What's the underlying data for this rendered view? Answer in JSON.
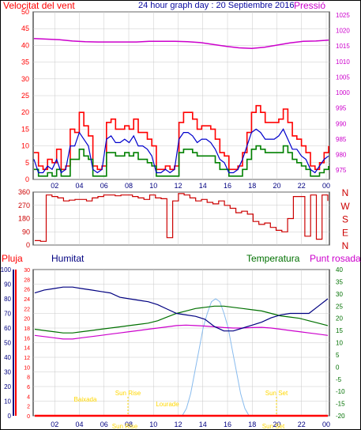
{
  "header": {
    "wind_label": "Velocitat del vent",
    "title": "24 hour graph day : 20 Septiembre 2016",
    "pressure_label": "Pressió"
  },
  "section_labels": {
    "rain": "Pluja",
    "humidity": "Humitat",
    "temperature": "Temperatura",
    "dewpoint": "Punt rosada"
  },
  "colors": {
    "wind": "#ff0000",
    "wind_avg": "#0000cc",
    "wind_green": "#008000",
    "pressure": "#cc00cc",
    "direction": "#cc0000",
    "humidity": "#000080",
    "temperature": "#007000",
    "dewpoint": "#cc00cc",
    "solar": "#88bbee",
    "annotation": "#ffd700"
  },
  "chart_data": [
    {
      "type": "line",
      "name": "wind_and_pressure",
      "x_tick_labels": [
        "02",
        "04",
        "06",
        "08",
        "10",
        "12",
        "14",
        "16",
        "18",
        "20",
        "22",
        "00"
      ],
      "left_axis": {
        "ticks": [
          0,
          5,
          10,
          15,
          20,
          25,
          30,
          35,
          40,
          45,
          50
        ],
        "range": [
          0,
          50
        ]
      },
      "right_axis": {
        "ticks": [
          975,
          980,
          985,
          990,
          995,
          1000,
          1005,
          1010,
          1015,
          1020,
          1025
        ],
        "range": [
          972,
          1026
        ]
      },
      "series": [
        {
          "name": "Velocitat del vent",
          "key": "gust",
          "values": [
            8,
            4,
            3,
            6,
            5,
            9,
            3,
            4,
            15,
            14,
            20,
            16,
            13,
            4,
            3,
            4,
            17,
            18,
            15,
            15,
            16,
            15,
            18,
            14,
            14,
            12,
            10,
            3,
            3,
            4,
            3,
            4,
            17,
            20,
            20,
            18,
            15,
            16,
            16,
            15,
            12,
            8,
            7,
            3,
            3,
            4,
            8,
            14,
            20,
            22,
            20,
            17,
            17,
            17,
            18,
            21,
            17,
            13,
            12,
            10,
            8,
            4,
            3,
            5,
            8,
            10
          ]
        },
        {
          "name": "wind_avg",
          "key": "avg",
          "values": [
            6,
            2,
            2,
            4,
            3,
            6,
            2,
            3,
            10,
            10,
            14,
            12,
            10,
            3,
            2,
            3,
            12,
            13,
            11,
            11,
            12,
            11,
            13,
            10,
            10,
            9,
            7,
            2,
            2,
            3,
            2,
            3,
            12,
            14,
            14,
            13,
            11,
            12,
            12,
            11,
            9,
            6,
            5,
            2,
            2,
            3,
            6,
            10,
            14,
            15,
            14,
            12,
            12,
            12,
            13,
            15,
            12,
            9,
            9,
            7,
            6,
            3,
            2,
            4,
            6,
            7
          ]
        },
        {
          "name": "wind_min",
          "key": "low",
          "values": [
            3,
            1,
            1,
            2,
            1,
            3,
            1,
            1,
            6,
            6,
            9,
            7,
            6,
            1,
            1,
            1,
            8,
            8,
            7,
            7,
            8,
            7,
            8,
            6,
            6,
            5,
            4,
            1,
            1,
            1,
            1,
            1,
            8,
            9,
            9,
            8,
            7,
            7,
            7,
            7,
            5,
            3,
            3,
            1,
            1,
            1,
            3,
            6,
            9,
            10,
            9,
            8,
            8,
            8,
            8,
            10,
            8,
            6,
            5,
            4,
            3,
            1,
            1,
            2,
            3,
            4
          ]
        },
        {
          "name": "Pressió",
          "key": "pressure",
          "values": [
            1017.4,
            1017.2,
            1017.0,
            1016.6,
            1016.4,
            1016.3,
            1016.3,
            1016.3,
            1016.3,
            1016.5,
            1016.5,
            1016.5,
            1016.4,
            1016.1,
            1015.5,
            1014.9,
            1014.4,
            1014.2,
            1014.6,
            1015.3,
            1016.0,
            1016.5,
            1016.6,
            1016.9
          ]
        }
      ]
    },
    {
      "type": "line",
      "name": "wind_direction",
      "left_axis": {
        "ticks": [
          360,
          270,
          180,
          90,
          0
        ],
        "range": [
          0,
          360
        ]
      },
      "right_labels": [
        "N",
        "W",
        "S",
        "E",
        "N"
      ],
      "series": [
        {
          "name": "Direcció",
          "key": "dir",
          "values": [
            30,
            25,
            340,
            330,
            320,
            300,
            305,
            310,
            310,
            300,
            320,
            330,
            340,
            340,
            335,
            340,
            340,
            330,
            320,
            310,
            340,
            320,
            315,
            50,
            300,
            350,
            340,
            320,
            300,
            310,
            290,
            280,
            300,
            270,
            250,
            220,
            230,
            210,
            160,
            140,
            150,
            120,
            100,
            90,
            180,
            330,
            330,
            60,
            340,
            40,
            340,
            300
          ]
        }
      ]
    },
    {
      "type": "line",
      "name": "humidity_temperature",
      "x_tick_labels": [
        "02",
        "04",
        "06",
        "08",
        "10",
        "12",
        "14",
        "16",
        "18",
        "20",
        "22",
        "00"
      ],
      "left_axis_humidity": {
        "ticks": [
          0,
          10,
          20,
          30,
          40,
          50,
          60,
          70,
          80,
          90,
          100
        ],
        "range": [
          0,
          100
        ]
      },
      "left_axis_rain": {
        "ticks": [
          0,
          2,
          4,
          6,
          8,
          10,
          12,
          14,
          16,
          18,
          20,
          22,
          24,
          26,
          28,
          30
        ],
        "range": [
          0,
          30
        ]
      },
      "right_axis": {
        "ticks": [
          -20,
          -15,
          -10,
          -5,
          0,
          5,
          10,
          15,
          20,
          25,
          30,
          35,
          40
        ],
        "range": [
          -20,
          40
        ]
      },
      "series": [
        {
          "name": "Humitat",
          "key": "hum",
          "values": [
            84,
            86,
            87,
            88,
            88,
            87,
            86,
            85,
            84,
            81,
            80,
            79,
            78,
            76,
            73,
            70,
            69,
            68,
            66,
            61,
            58,
            58,
            60,
            62,
            64,
            67,
            69,
            70,
            70,
            70,
            75,
            80
          ]
        },
        {
          "name": "Temperatura",
          "key": "temp",
          "values": [
            15.5,
            15.0,
            14.5,
            14.0,
            14.0,
            14.5,
            15.0,
            15.5,
            16.0,
            16.5,
            17.0,
            17.5,
            18.0,
            19.0,
            20.5,
            22.0,
            23.0,
            24.0,
            24.5,
            25.0,
            25.0,
            24.5,
            24.0,
            23.5,
            23.0,
            22.0,
            21.0,
            20.5,
            20.0,
            19.0,
            18.0,
            17.0
          ]
        },
        {
          "name": "Punt rosada",
          "key": "dew",
          "values": [
            13.0,
            12.5,
            12.0,
            11.5,
            11.5,
            12.0,
            12.5,
            13.0,
            13.5,
            14.0,
            14.5,
            15.0,
            15.5,
            16.0,
            16.5,
            17.0,
            17.2,
            17.0,
            16.8,
            16.5,
            16.2,
            16.0,
            16.0,
            16.2,
            16.3,
            16.0,
            15.5,
            15.0,
            14.5,
            14.0,
            13.5,
            13.0
          ]
        },
        {
          "name": "solar",
          "key": "solar",
          "values": [
            0,
            0,
            0,
            0,
            0,
            0,
            0,
            0,
            0,
            0,
            0,
            0,
            0,
            0,
            5,
            15,
            30,
            45,
            60,
            70,
            78,
            80,
            78,
            70,
            60,
            45,
            30,
            15,
            5,
            0,
            0,
            0,
            0,
            0,
            0,
            0
          ]
        },
        {
          "name": "Pluja",
          "key": "rain",
          "values": [
            0,
            0,
            0,
            0,
            0,
            0,
            0,
            0,
            0,
            0,
            0,
            0,
            0,
            0,
            0,
            0,
            0,
            0,
            0,
            0,
            0,
            0,
            0,
            0
          ]
        }
      ],
      "annotations": [
        "Baixada",
        "Sun Rise",
        "Lourade",
        "Sun Set",
        "Sun Rise",
        "Sun Set"
      ]
    }
  ]
}
